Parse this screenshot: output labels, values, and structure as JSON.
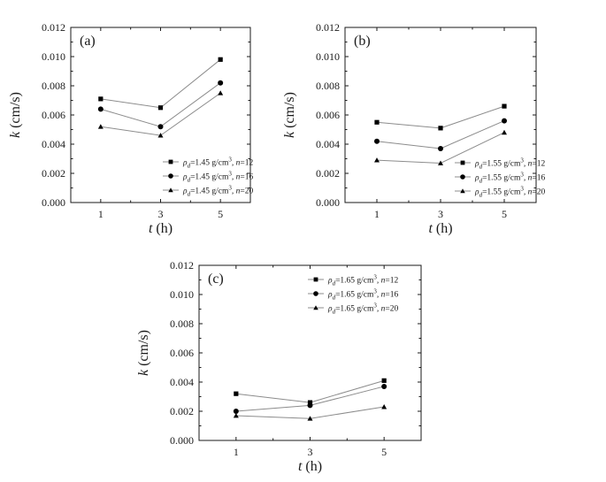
{
  "chart_data": [
    {
      "type": "line",
      "panel_label": "(a)",
      "x": [
        1,
        3,
        5
      ],
      "xlabel_var": "t",
      "xlabel_unit": " (h)",
      "ylabel_var": "k",
      "ylabel_unit": " (cm/s)",
      "ylim": [
        0,
        0.012
      ],
      "yticks": [
        "0.000",
        "0.002",
        "0.004",
        "0.006",
        "0.008",
        "0.010",
        "0.012"
      ],
      "xticks": [
        "1",
        "3",
        "5"
      ],
      "legend_position": "bottom-right",
      "series": [
        {
          "marker": "square",
          "legend": {
            "rho": "ρ",
            "sub": "d",
            "mid": "=1.45 g/cm",
            "sup": "3",
            "sep": ", ",
            "n": "n",
            "val": "=12"
          },
          "values": [
            0.0071,
            0.0065,
            0.0098
          ]
        },
        {
          "marker": "circle",
          "legend": {
            "rho": "ρ",
            "sub": "d",
            "mid": "=1.45 g/cm",
            "sup": "3",
            "sep": ", ",
            "n": "n",
            "val": "=16"
          },
          "values": [
            0.0064,
            0.0052,
            0.0082
          ]
        },
        {
          "marker": "triangle",
          "legend": {
            "rho": "ρ",
            "sub": "d",
            "mid": "=1.45 g/cm",
            "sup": "3",
            "sep": ", ",
            "n": "n",
            "val": "=20"
          },
          "values": [
            0.0052,
            0.0046,
            0.0075
          ]
        }
      ]
    },
    {
      "type": "line",
      "panel_label": "(b)",
      "x": [
        1,
        3,
        5
      ],
      "xlabel_var": "t",
      "xlabel_unit": " (h)",
      "ylabel_var": "k",
      "ylabel_unit": " (cm/s)",
      "ylim": [
        0,
        0.012
      ],
      "yticks": [
        "0.000",
        "0.002",
        "0.004",
        "0.006",
        "0.008",
        "0.010",
        "0.012"
      ],
      "xticks": [
        "1",
        "3",
        "5"
      ],
      "legend_position": "bottom-right",
      "series": [
        {
          "marker": "square",
          "legend": {
            "rho": "ρ",
            "sub": "d",
            "mid": "=1.55 g/cm",
            "sup": "3",
            "sep": ", ",
            "n": "n",
            "val": "=12"
          },
          "values": [
            0.0055,
            0.0051,
            0.0066
          ]
        },
        {
          "marker": "circle",
          "legend": {
            "rho": "ρ",
            "sub": "d",
            "mid": "=1.55 g/cm",
            "sup": "3",
            "sep": ", ",
            "n": "n",
            "val": "=16"
          },
          "values": [
            0.0042,
            0.0037,
            0.0056
          ]
        },
        {
          "marker": "triangle",
          "legend": {
            "rho": "ρ",
            "sub": "d",
            "mid": "=1.55 g/cm",
            "sup": "3",
            "sep": ", ",
            "n": "n",
            "val": "=20"
          },
          "values": [
            0.0029,
            0.0027,
            0.0048
          ]
        }
      ]
    },
    {
      "type": "line",
      "panel_label": "(c)",
      "x": [
        1,
        3,
        5
      ],
      "xlabel_var": "t",
      "xlabel_unit": " (h)",
      "ylabel_var": "k",
      "ylabel_unit": " (cm/s)",
      "ylim": [
        0,
        0.012
      ],
      "yticks": [
        "0.000",
        "0.002",
        "0.004",
        "0.006",
        "0.008",
        "0.010",
        "0.012"
      ],
      "xticks": [
        "1",
        "3",
        "5"
      ],
      "legend_position": "top-right",
      "series": [
        {
          "marker": "square",
          "legend": {
            "rho": "ρ",
            "sub": "d",
            "mid": "=1.65 g/cm",
            "sup": "3",
            "sep": ", ",
            "n": "n",
            "val": "=12"
          },
          "values": [
            0.0032,
            0.0026,
            0.0041
          ]
        },
        {
          "marker": "circle",
          "legend": {
            "rho": "ρ",
            "sub": "d",
            "mid": "=1.65 g/cm",
            "sup": "3",
            "sep": ", ",
            "n": "n",
            "val": "=16"
          },
          "values": [
            0.002,
            0.0024,
            0.0037
          ]
        },
        {
          "marker": "triangle",
          "legend": {
            "rho": "ρ",
            "sub": "d",
            "mid": "=1.65 g/cm",
            "sup": "3",
            "sep": ", ",
            "n": "n",
            "val": "=20"
          },
          "values": [
            0.0017,
            0.0015,
            0.0023
          ]
        }
      ]
    }
  ],
  "colors": {
    "axis": "#1a1a1a",
    "line": "#8c8c8c",
    "marker": "#000000"
  }
}
